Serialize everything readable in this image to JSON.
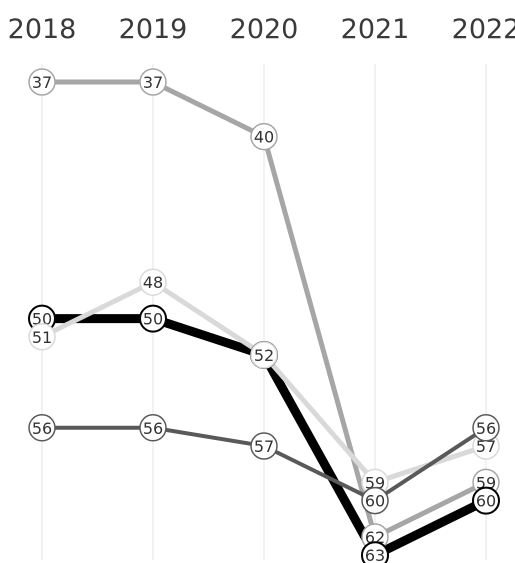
{
  "chart_data": {
    "type": "line",
    "title": "",
    "xlabel": "",
    "ylabel": "",
    "x": [
      "2018",
      "2019",
      "2020",
      "2021",
      "2022"
    ],
    "y_axis": "rank (inverted, 37 at top, 63 at bottom)",
    "ylim": [
      35,
      64
    ],
    "grid": "vertical gridlines at each year",
    "legend": "none",
    "series": [
      {
        "color": "#a6a6a6",
        "width": 5,
        "values": [
          37,
          37,
          40,
          62,
          59
        ]
      },
      {
        "color": "#000000",
        "width": 9,
        "values": [
          50,
          50,
          52,
          63,
          60
        ]
      },
      {
        "color": "#d9d9d9",
        "width": 5,
        "values": [
          51,
          48,
          52,
          59,
          57
        ]
      },
      {
        "color": "#595959",
        "width": 4,
        "values": [
          56,
          56,
          57,
          60,
          56
        ]
      }
    ]
  }
}
